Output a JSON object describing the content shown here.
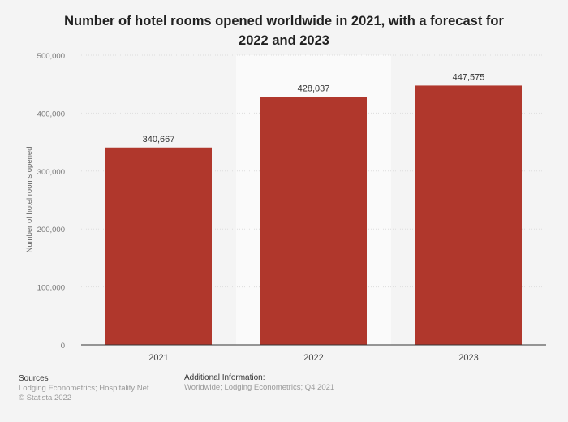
{
  "chart_data": {
    "type": "bar",
    "title": "Number of hotel rooms opened worldwide in 2021, with a forecast for 2022 and 2023",
    "xlabel": "",
    "ylabel": "Number of hotel rooms opened",
    "categories": [
      "2021",
      "2022",
      "2023"
    ],
    "values": [
      340667,
      428037,
      447575
    ],
    "data_labels": [
      "340,667",
      "428,037",
      "447,575"
    ],
    "ylim": [
      0,
      500000
    ],
    "yticks": [
      0,
      100000,
      200000,
      300000,
      400000,
      500000
    ],
    "ytick_labels": [
      "0",
      "100,000",
      "200,000",
      "300,000",
      "400,000",
      "500,000"
    ],
    "grid": true,
    "highlighted_category": "2022",
    "colors": {
      "bar": "#b0372c",
      "highlight_band": "#fafafa",
      "background": "#f4f4f4"
    }
  },
  "footer": {
    "sources_heading": "Sources",
    "sources": "Lodging Econometrics; Hospitality Net",
    "copyright": "© Statista 2022",
    "additional_heading": "Additional Information:",
    "additional": "Worldwide; Lodging Econometrics; Q4 2021"
  }
}
